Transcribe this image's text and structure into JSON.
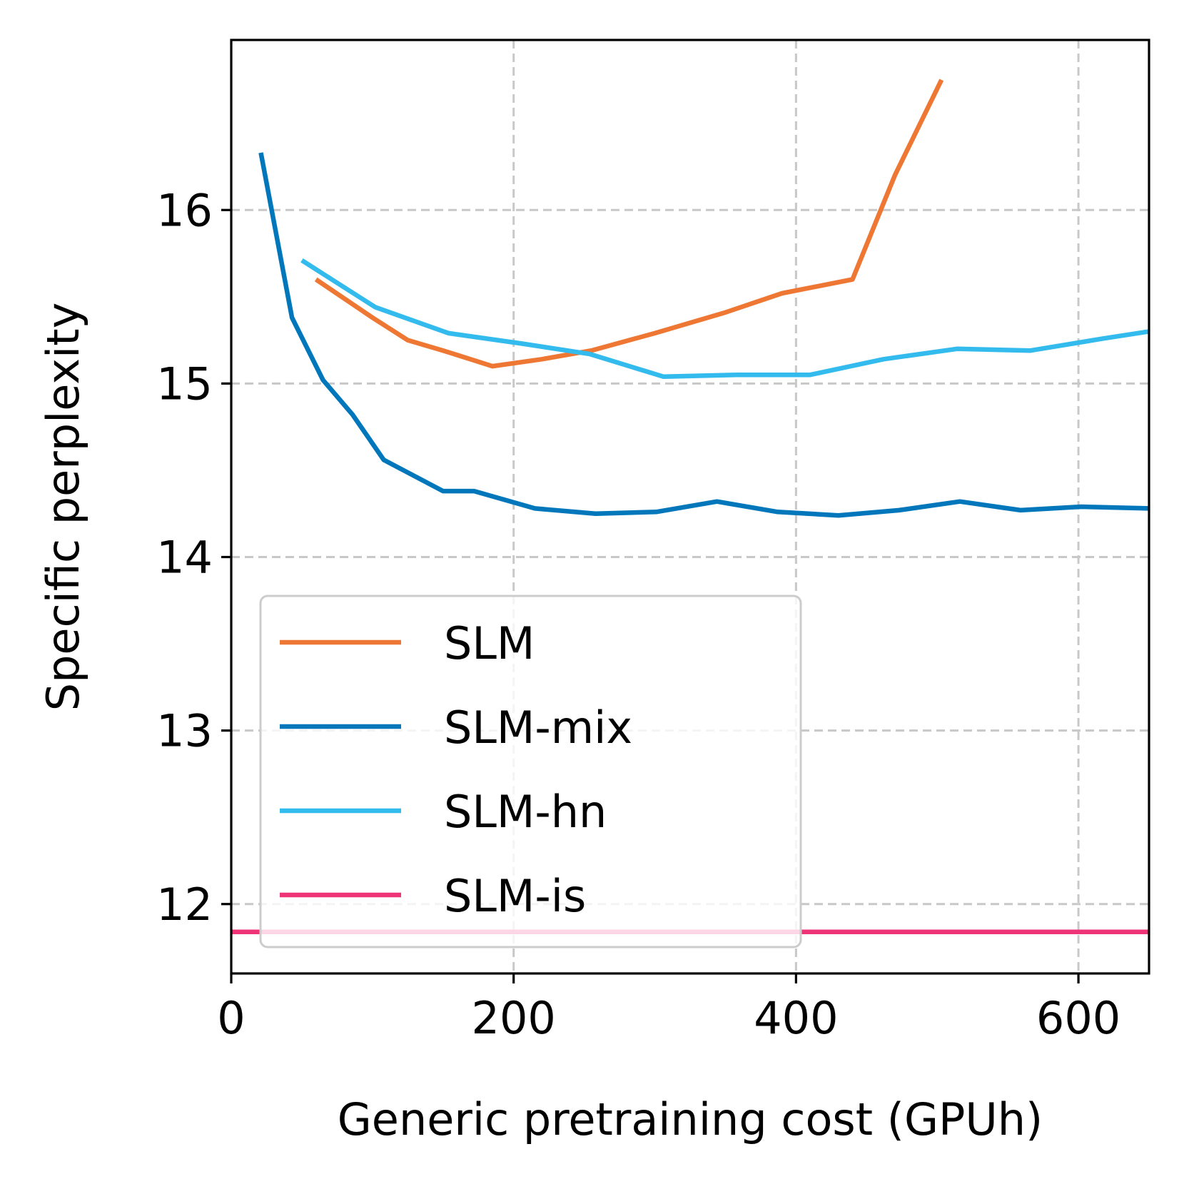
{
  "chart_data": {
    "type": "line",
    "title": "",
    "xlabel": "Generic pretraining cost (GPUh)",
    "ylabel": "Specific perplexity",
    "xlim": [
      0,
      650
    ],
    "ylim": [
      11.6,
      16.98
    ],
    "xticks": [
      0,
      200,
      400,
      600
    ],
    "yticks": [
      12,
      13,
      14,
      15,
      16
    ],
    "grid": true,
    "legend_position": "lower-left",
    "series": [
      {
        "name": "SLM",
        "color": "#EE7733",
        "x": [
          60,
          100,
          125,
          150,
          185,
          220,
          255,
          300,
          350,
          390,
          440,
          470,
          503
        ],
        "y": [
          15.6,
          15.38,
          15.25,
          15.19,
          15.1,
          15.14,
          15.19,
          15.29,
          15.41,
          15.52,
          15.6,
          16.2,
          16.75
        ]
      },
      {
        "name": "SLM-mix",
        "color": "#0077BB",
        "x": [
          21,
          43,
          65,
          86,
          108,
          150,
          172,
          215,
          258,
          301,
          344,
          387,
          430,
          473,
          516,
          559,
          602,
          650
        ],
        "y": [
          16.33,
          15.38,
          15.02,
          14.82,
          14.56,
          14.38,
          14.38,
          14.28,
          14.25,
          14.26,
          14.32,
          14.26,
          14.24,
          14.27,
          14.32,
          14.27,
          14.29,
          14.28
        ]
      },
      {
        "name": "SLM-hn",
        "color": "#33BBEE",
        "x": [
          50,
          102,
          154,
          206,
          254,
          306,
          358,
          410,
          462,
          514,
          566,
          618,
          650
        ],
        "y": [
          15.71,
          15.44,
          15.29,
          15.23,
          15.17,
          15.04,
          15.05,
          15.05,
          15.14,
          15.2,
          15.19,
          15.26,
          15.3
        ]
      },
      {
        "name": "SLM-is",
        "color": "#EE3377",
        "x": [
          0,
          650
        ],
        "y": [
          11.84,
          11.84
        ]
      }
    ]
  }
}
